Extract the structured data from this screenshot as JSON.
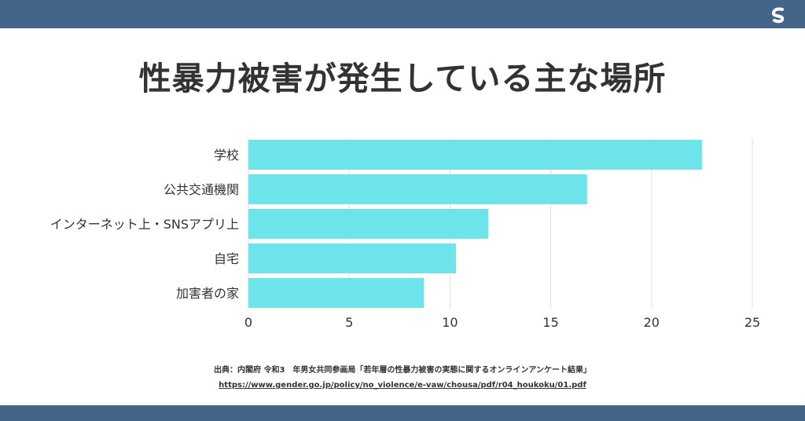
{
  "colors": {
    "bar": "#6ce4ea",
    "header": "#44658a",
    "text": "#333333",
    "grid": "#e0e0e0"
  },
  "title": "性暴力被害が発生している主な場所",
  "logo": {
    "icon": "s-logo-icon"
  },
  "chart_data": {
    "type": "bar",
    "orientation": "horizontal",
    "categories": [
      "学校",
      "公共交通機関",
      "インターネット上・SNSアプリ上",
      "自宅",
      "加害者の家"
    ],
    "values": [
      22.5,
      16.8,
      11.9,
      10.3,
      8.7
    ],
    "xlim": [
      0,
      25
    ],
    "xticks": [
      "0",
      "5",
      "10",
      "15",
      "20",
      "25"
    ],
    "grid": true
  },
  "source": {
    "line1": "出典：内閣府 令和3　年男女共同参画局「若年層の性暴力被害の実態に関するオンラインアンケート結果」",
    "url": "https://www.gender.go.jp/policy/no_violence/e-vaw/chousa/pdf/r04_houkoku/01.pdf"
  }
}
